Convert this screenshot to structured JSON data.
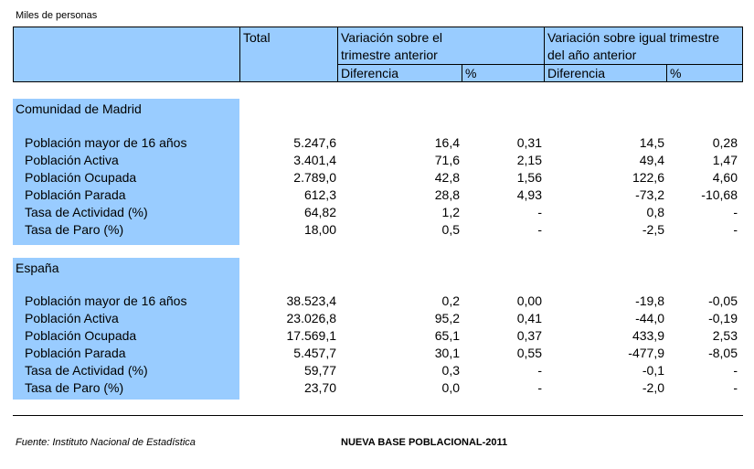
{
  "units": "Miles de personas",
  "header": {
    "total": "Total",
    "var_prev_line1": "Variación sobre el",
    "var_prev_line2": "trimestre anterior",
    "var_year_line1": "Variación sobre igual trimestre",
    "var_year_line2": "del año anterior",
    "diff": "Diferencia",
    "pct": "%"
  },
  "sections": [
    {
      "title": "Comunidad de Madrid",
      "rows": [
        {
          "label": "Población mayor de 16 años",
          "total": "5.247,6",
          "d1": "16,4",
          "p1": "0,31",
          "d2": "14,5",
          "p2": "0,28"
        },
        {
          "label": "Población Activa",
          "total": "3.401,4",
          "d1": "71,6",
          "p1": "2,15",
          "d2": "49,4",
          "p2": "1,47"
        },
        {
          "label": "Población Ocupada",
          "total": "2.789,0",
          "d1": "42,8",
          "p1": "1,56",
          "d2": "122,6",
          "p2": "4,60"
        },
        {
          "label": "Población Parada",
          "total": "612,3",
          "d1": "28,8",
          "p1": "4,93",
          "d2": "-73,2",
          "p2": "-10,68"
        },
        {
          "label": "Tasa de Actividad (%)",
          "total": "64,82",
          "d1": "1,2",
          "p1": "-",
          "d2": "0,8",
          "p2": "-"
        },
        {
          "label": "Tasa de Paro (%)",
          "total": "18,00",
          "d1": "0,5",
          "p1": "-",
          "d2": "-2,5",
          "p2": "-"
        }
      ]
    },
    {
      "title": "España",
      "rows": [
        {
          "label": "Población mayor de 16 años",
          "total": "38.523,4",
          "d1": "0,2",
          "p1": "0,00",
          "d2": "-19,8",
          "p2": "-0,05"
        },
        {
          "label": "Población Activa",
          "total": "23.026,8",
          "d1": "95,2",
          "p1": "0,41",
          "d2": "-44,0",
          "p2": "-0,19"
        },
        {
          "label": "Población Ocupada",
          "total": "17.569,1",
          "d1": "65,1",
          "p1": "0,37",
          "d2": "433,9",
          "p2": "2,53"
        },
        {
          "label": "Población Parada",
          "total": "5.457,7",
          "d1": "30,1",
          "p1": "0,55",
          "d2": "-477,9",
          "p2": "-8,05"
        },
        {
          "label": "Tasa de Actividad (%)",
          "total": "59,77",
          "d1": "0,3",
          "p1": "-",
          "d2": "-0,1",
          "p2": "-"
        },
        {
          "label": "Tasa de Paro (%)",
          "total": "23,70",
          "d1": "0,0",
          "p1": "-",
          "d2": "-2,0",
          "p2": "-"
        }
      ]
    }
  ],
  "footer": {
    "source": "Fuente: Instituto Nacional de Estadística",
    "base": "NUEVA BASE POBLACIONAL-2011"
  }
}
